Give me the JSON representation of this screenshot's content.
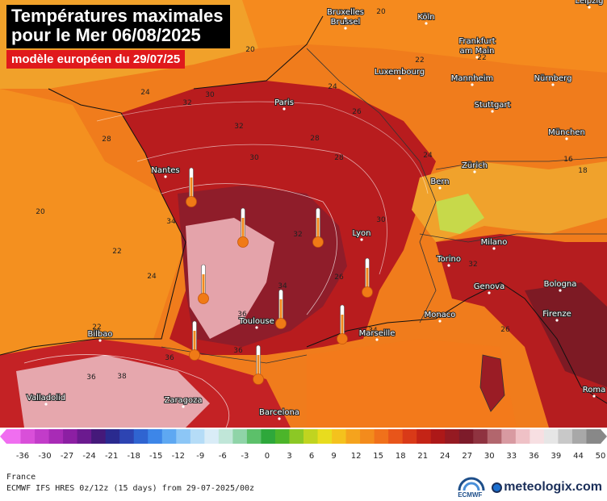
{
  "title_line1": "Températures maximales",
  "title_line2": "pour le Mer 06/08/2025",
  "subtitle": "modèle européen du 29/07/25",
  "cities": [
    {
      "name": "Bruxelles"
    },
    {
      "name": "Brussel"
    },
    {
      "name": "Köln"
    },
    {
      "name": "Leipzig"
    },
    {
      "name": "Frankfurt"
    },
    {
      "name": "am Main"
    },
    {
      "name": "Luxembourg"
    },
    {
      "name": "Mannheim"
    },
    {
      "name": "Nürnberg"
    },
    {
      "name": "Stuttgart"
    },
    {
      "name": "Paris"
    },
    {
      "name": "München"
    },
    {
      "name": "Nantes"
    },
    {
      "name": "Zürich"
    },
    {
      "name": "Bern"
    },
    {
      "name": "Lyon"
    },
    {
      "name": "Torino"
    },
    {
      "name": "Milano"
    },
    {
      "name": "Genova"
    },
    {
      "name": "Bologna"
    },
    {
      "name": "Monaco"
    },
    {
      "name": "Toulouse"
    },
    {
      "name": "Marseille"
    },
    {
      "name": "Firenze"
    },
    {
      "name": "Bilbao"
    },
    {
      "name": "Valladolid"
    },
    {
      "name": "Zaragoza"
    },
    {
      "name": "Barcelona"
    },
    {
      "name": "Roma"
    }
  ],
  "isotherm_labels": [
    "20",
    "24",
    "28",
    "32",
    "20",
    "22",
    "24",
    "28",
    "30",
    "26",
    "22",
    "24",
    "30",
    "32",
    "34",
    "36",
    "38",
    "34",
    "36",
    "22",
    "26",
    "32",
    "24",
    "20",
    "18",
    "16",
    "34",
    "36",
    "36",
    "26",
    "28",
    "30",
    "32",
    "22"
  ],
  "colorbar": {
    "ticks": [
      "-36",
      "-30",
      "-27",
      "-24",
      "-21",
      "-18",
      "-15",
      "-12",
      "-9",
      "-6",
      "-3",
      "0",
      "3",
      "6",
      "9",
      "12",
      "15",
      "18",
      "21",
      "24",
      "27",
      "30",
      "33",
      "36",
      "39",
      "44",
      "50"
    ]
  },
  "footer": {
    "region": "France",
    "model_line": "ECMWF IFS HRES 0z/12z (15 days) from 29-07-2025/00z"
  },
  "brand": {
    "name": "meteologix.com",
    "partner": "ECMWF"
  },
  "colors": {
    "title_bg": "#000000",
    "subtitle_bg": "#e0191c",
    "sea_warm": "#f07c1c",
    "land_hot": "#b01a1a",
    "core_extreme": "#e8a4a8",
    "brand_blue": "#1b6fd0"
  }
}
